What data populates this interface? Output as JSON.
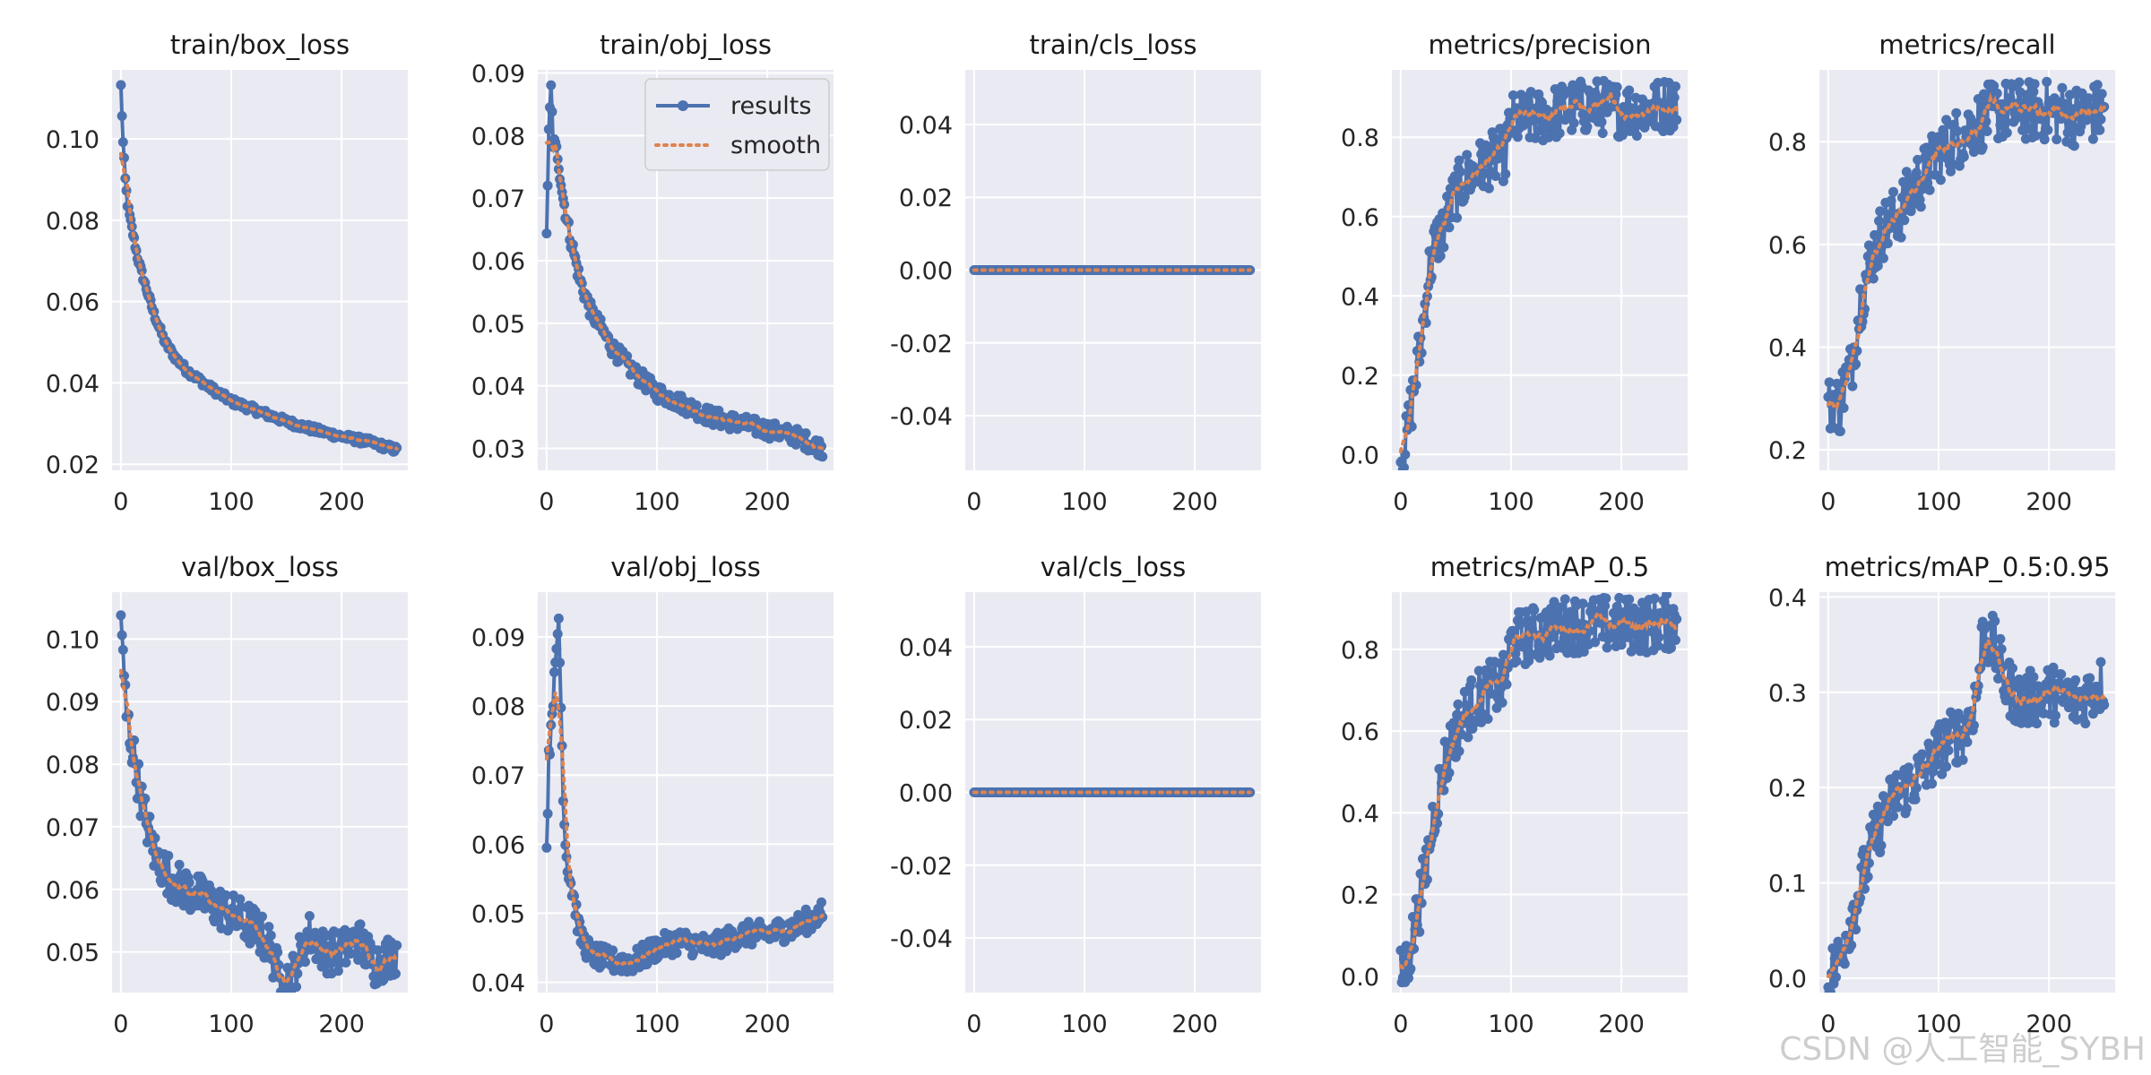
{
  "watermark": "CSDN @人工智能_SYBH",
  "colors": {
    "results": "#4c72b0",
    "smooth": "#dd8452",
    "panel_bg": "#eaeaf2",
    "grid": "#ffffff"
  },
  "legend": {
    "placement": "upper right of train/obj_loss",
    "results_label": "results",
    "smooth_label": "smooth"
  },
  "chart_data": [
    {
      "id": "train_box_loss",
      "type": "line",
      "title": "train/box_loss",
      "xlim": [
        -8,
        260
      ],
      "xticks": [
        0,
        100,
        200
      ],
      "ylim": [
        0.0185,
        0.117
      ],
      "yticks": [
        0.02,
        0.04,
        0.06,
        0.08,
        0.1
      ],
      "ytick_decimals": 2,
      "n_epochs": 251,
      "anchors": [
        [
          0,
          0.113
        ],
        [
          2,
          0.099
        ],
        [
          4,
          0.09
        ],
        [
          6,
          0.084
        ],
        [
          10,
          0.078
        ],
        [
          15,
          0.071
        ],
        [
          20,
          0.066
        ],
        [
          30,
          0.057
        ],
        [
          40,
          0.05
        ],
        [
          50,
          0.046
        ],
        [
          60,
          0.043
        ],
        [
          80,
          0.039
        ],
        [
          100,
          0.0355
        ],
        [
          125,
          0.033
        ],
        [
          150,
          0.0305
        ],
        [
          175,
          0.0285
        ],
        [
          200,
          0.0268
        ],
        [
          225,
          0.0255
        ],
        [
          250,
          0.0235
        ]
      ],
      "noise": 0.0009
    },
    {
      "id": "train_obj_loss",
      "type": "line",
      "title": "train/obj_loss",
      "xlim": [
        -8,
        260
      ],
      "xticks": [
        0,
        100,
        200
      ],
      "ylim": [
        0.0265,
        0.0905
      ],
      "yticks": [
        0.03,
        0.04,
        0.05,
        0.06,
        0.07,
        0.08,
        0.09
      ],
      "ytick_decimals": 2,
      "n_epochs": 251,
      "anchors": [
        [
          0,
          0.065
        ],
        [
          2,
          0.08
        ],
        [
          4,
          0.0875
        ],
        [
          6,
          0.079
        ],
        [
          10,
          0.077
        ],
        [
          15,
          0.07
        ],
        [
          20,
          0.065
        ],
        [
          30,
          0.057
        ],
        [
          40,
          0.052
        ],
        [
          50,
          0.049
        ],
        [
          60,
          0.046
        ],
        [
          80,
          0.042
        ],
        [
          100,
          0.039
        ],
        [
          125,
          0.037
        ],
        [
          150,
          0.035
        ],
        [
          175,
          0.034
        ],
        [
          200,
          0.033
        ],
        [
          225,
          0.032
        ],
        [
          250,
          0.03
        ]
      ],
      "noise": 0.0014
    },
    {
      "id": "train_cls_loss",
      "type": "line",
      "title": "train/cls_loss",
      "xlim": [
        -8,
        260
      ],
      "xticks": [
        0,
        100,
        200
      ],
      "ylim": [
        -0.055,
        0.055
      ],
      "yticks": [
        -0.04,
        -0.02,
        0.0,
        0.02,
        0.04
      ],
      "ytick_decimals": 2,
      "n_epochs": 251,
      "anchors": [
        [
          0,
          0.0
        ],
        [
          250,
          0.0
        ]
      ],
      "noise": 0.0
    },
    {
      "id": "metrics_precision",
      "type": "line",
      "title": "metrics/precision",
      "xlim": [
        -8,
        260
      ],
      "xticks": [
        0,
        100,
        200
      ],
      "ylim": [
        -0.04,
        0.97
      ],
      "yticks": [
        0.0,
        0.2,
        0.4,
        0.6,
        0.8
      ],
      "ytick_decimals": 1,
      "n_epochs": 251,
      "anchors": [
        [
          0,
          0.0
        ],
        [
          5,
          0.03
        ],
        [
          10,
          0.13
        ],
        [
          15,
          0.22
        ],
        [
          20,
          0.32
        ],
        [
          25,
          0.45
        ],
        [
          30,
          0.52
        ],
        [
          40,
          0.58
        ],
        [
          50,
          0.66
        ],
        [
          60,
          0.7
        ],
        [
          70,
          0.72
        ],
        [
          80,
          0.74
        ],
        [
          95,
          0.76
        ],
        [
          100,
          0.84
        ],
        [
          125,
          0.85
        ],
        [
          150,
          0.87
        ],
        [
          175,
          0.88
        ],
        [
          200,
          0.87
        ],
        [
          225,
          0.87
        ],
        [
          250,
          0.89
        ]
      ],
      "noise": 0.07
    },
    {
      "id": "metrics_recall",
      "type": "line",
      "title": "metrics/recall",
      "xlim": [
        -8,
        260
      ],
      "xticks": [
        0,
        100,
        200
      ],
      "ylim": [
        0.16,
        0.94
      ],
      "yticks": [
        0.2,
        0.4,
        0.6,
        0.8
      ],
      "ytick_decimals": 1,
      "n_epochs": 251,
      "anchors": [
        [
          0,
          0.28
        ],
        [
          5,
          0.3
        ],
        [
          10,
          0.28
        ],
        [
          15,
          0.33
        ],
        [
          20,
          0.35
        ],
        [
          30,
          0.5
        ],
        [
          40,
          0.58
        ],
        [
          50,
          0.63
        ],
        [
          60,
          0.65
        ],
        [
          70,
          0.68
        ],
        [
          80,
          0.72
        ],
        [
          90,
          0.74
        ],
        [
          100,
          0.78
        ],
        [
          125,
          0.82
        ],
        [
          150,
          0.86
        ],
        [
          175,
          0.86
        ],
        [
          200,
          0.86
        ],
        [
          225,
          0.85
        ],
        [
          250,
          0.86
        ]
      ],
      "noise": 0.06
    },
    {
      "id": "val_box_loss",
      "type": "line",
      "title": "val/box_loss",
      "xlim": [
        -8,
        260
      ],
      "xticks": [
        0,
        100,
        200
      ],
      "ylim": [
        0.0435,
        0.1075
      ],
      "yticks": [
        0.05,
        0.06,
        0.07,
        0.08,
        0.09,
        0.1
      ],
      "ytick_decimals": 2,
      "n_epochs": 251,
      "anchors": [
        [
          0,
          0.105
        ],
        [
          2,
          0.096
        ],
        [
          5,
          0.088
        ],
        [
          10,
          0.083
        ],
        [
          15,
          0.078
        ],
        [
          20,
          0.073
        ],
        [
          30,
          0.066
        ],
        [
          40,
          0.063
        ],
        [
          50,
          0.061
        ],
        [
          60,
          0.06
        ],
        [
          80,
          0.058
        ],
        [
          100,
          0.056
        ],
        [
          120,
          0.054
        ],
        [
          135,
          0.051
        ],
        [
          145,
          0.045
        ],
        [
          155,
          0.046
        ],
        [
          170,
          0.053
        ],
        [
          185,
          0.05
        ],
        [
          200,
          0.05
        ],
        [
          215,
          0.052
        ],
        [
          230,
          0.048
        ],
        [
          250,
          0.05
        ]
      ],
      "noise": 0.0035
    },
    {
      "id": "val_obj_loss",
      "type": "line",
      "title": "val/obj_loss",
      "xlim": [
        -8,
        260
      ],
      "xticks": [
        0,
        100,
        200
      ],
      "ylim": [
        0.0385,
        0.0965
      ],
      "yticks": [
        0.04,
        0.05,
        0.06,
        0.07,
        0.08,
        0.09
      ],
      "ytick_decimals": 2,
      "n_epochs": 251,
      "anchors": [
        [
          0,
          0.06
        ],
        [
          2,
          0.072
        ],
        [
          5,
          0.08
        ],
        [
          8,
          0.085
        ],
        [
          11,
          0.093
        ],
        [
          13,
          0.08
        ],
        [
          15,
          0.068
        ],
        [
          17,
          0.06
        ],
        [
          20,
          0.056
        ],
        [
          25,
          0.052
        ],
        [
          30,
          0.047
        ],
        [
          40,
          0.044
        ],
        [
          60,
          0.043
        ],
        [
          80,
          0.043
        ],
        [
          100,
          0.045
        ],
        [
          120,
          0.046
        ],
        [
          150,
          0.045
        ],
        [
          175,
          0.047
        ],
        [
          200,
          0.047
        ],
        [
          225,
          0.048
        ],
        [
          250,
          0.05
        ]
      ],
      "noise": 0.0018
    },
    {
      "id": "val_cls_loss",
      "type": "line",
      "title": "val/cls_loss",
      "xlim": [
        -8,
        260
      ],
      "xticks": [
        0,
        100,
        200
      ],
      "ylim": [
        -0.055,
        0.055
      ],
      "yticks": [
        -0.04,
        -0.02,
        0.0,
        0.02,
        0.04
      ],
      "ytick_decimals": 2,
      "n_epochs": 251,
      "anchors": [
        [
          0,
          0.0
        ],
        [
          250,
          0.0
        ]
      ],
      "noise": 0.0
    },
    {
      "id": "metrics_mAP_0_5",
      "type": "line",
      "title": "metrics/mAP_0.5",
      "xlim": [
        -8,
        260
      ],
      "xticks": [
        0,
        100,
        200
      ],
      "ylim": [
        -0.04,
        0.94
      ],
      "yticks": [
        0.0,
        0.2,
        0.4,
        0.6,
        0.8
      ],
      "ytick_decimals": 1,
      "n_epochs": 251,
      "anchors": [
        [
          0,
          0.0
        ],
        [
          5,
          0.03
        ],
        [
          10,
          0.08
        ],
        [
          15,
          0.15
        ],
        [
          20,
          0.22
        ],
        [
          25,
          0.3
        ],
        [
          30,
          0.4
        ],
        [
          40,
          0.52
        ],
        [
          50,
          0.6
        ],
        [
          60,
          0.65
        ],
        [
          70,
          0.68
        ],
        [
          80,
          0.7
        ],
        [
          95,
          0.72
        ],
        [
          100,
          0.82
        ],
        [
          125,
          0.84
        ],
        [
          150,
          0.86
        ],
        [
          175,
          0.86
        ],
        [
          200,
          0.86
        ],
        [
          225,
          0.86
        ],
        [
          250,
          0.87
        ]
      ],
      "noise": 0.07
    },
    {
      "id": "metrics_mAP_0_5_0_95",
      "type": "line",
      "title": "metrics/mAP_0.5:0.95",
      "xlim": [
        -8,
        260
      ],
      "xticks": [
        0,
        100,
        200
      ],
      "ylim": [
        -0.015,
        0.405
      ],
      "yticks": [
        0.0,
        0.1,
        0.2,
        0.3,
        0.4
      ],
      "ytick_decimals": 1,
      "n_epochs": 251,
      "anchors": [
        [
          0,
          0.0
        ],
        [
          5,
          0.01
        ],
        [
          10,
          0.02
        ],
        [
          15,
          0.04
        ],
        [
          20,
          0.06
        ],
        [
          25,
          0.08
        ],
        [
          30,
          0.1
        ],
        [
          40,
          0.14
        ],
        [
          50,
          0.17
        ],
        [
          60,
          0.19
        ],
        [
          70,
          0.2
        ],
        [
          80,
          0.21
        ],
        [
          90,
          0.22
        ],
        [
          100,
          0.24
        ],
        [
          110,
          0.25
        ],
        [
          125,
          0.26
        ],
        [
          135,
          0.3
        ],
        [
          140,
          0.36
        ],
        [
          150,
          0.35
        ],
        [
          160,
          0.31
        ],
        [
          175,
          0.29
        ],
        [
          200,
          0.3
        ],
        [
          225,
          0.29
        ],
        [
          250,
          0.31
        ]
      ],
      "noise": 0.03
    }
  ]
}
